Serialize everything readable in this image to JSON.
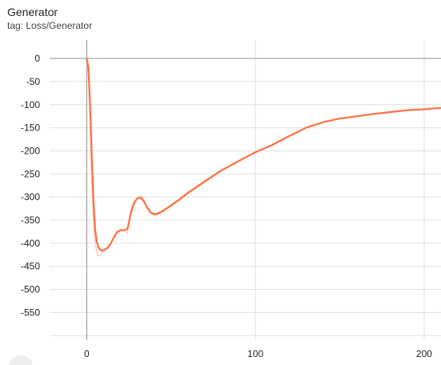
{
  "card": {
    "title": "Generator",
    "subtitle": "tag: Loss/Generator"
  },
  "chart_data": {
    "type": "line",
    "title": "Generator",
    "xlim": [
      -22,
      210
    ],
    "ylim": [
      -610,
      40
    ],
    "x_ticks": [
      0,
      100,
      200
    ],
    "y_ticks": [
      0,
      -50,
      -100,
      -150,
      -200,
      -250,
      -300,
      -350,
      -400,
      -450,
      -500,
      -550
    ],
    "grid": true,
    "legend": "none",
    "colors": {
      "smoothed": "#ff7043",
      "raw": "#ffccbc",
      "grid": "#e0e0e0",
      "zero_line": "#9e9e9e"
    },
    "series": [
      {
        "kind": "raw",
        "x": [
          0,
          1,
          2,
          3,
          4,
          5,
          6,
          7,
          8,
          9,
          10,
          12,
          14,
          16,
          18,
          20,
          22,
          24,
          25,
          26,
          28,
          30,
          32,
          33,
          34,
          36,
          38,
          40,
          42,
          45,
          50,
          55,
          60,
          70,
          80,
          90,
          100,
          110,
          120,
          130,
          140,
          150,
          160,
          170,
          180,
          190,
          200,
          210
        ],
        "y": [
          0,
          -40,
          -150,
          -270,
          -355,
          -400,
          -420,
          -428,
          -425,
          -420,
          -418,
          -413,
          -403,
          -390,
          -378,
          -370,
          -372,
          -378,
          -360,
          -340,
          -318,
          -302,
          -298,
          -300,
          -306,
          -322,
          -334,
          -340,
          -338,
          -332,
          -320,
          -307,
          -293,
          -268,
          -243,
          -223,
          -203,
          -187,
          -168,
          -150,
          -138,
          -130,
          -125,
          -120,
          -116,
          -112,
          -110,
          -107
        ]
      },
      {
        "kind": "smoothed",
        "x": [
          0,
          1,
          2,
          3,
          4,
          5,
          6,
          7,
          8,
          9,
          10,
          12,
          14,
          16,
          18,
          20,
          22,
          24,
          25,
          26,
          28,
          30,
          32,
          34,
          36,
          38,
          40,
          42,
          45,
          50,
          55,
          60,
          70,
          80,
          90,
          100,
          110,
          120,
          130,
          140,
          150,
          160,
          170,
          180,
          190,
          200,
          210
        ],
        "y": [
          0,
          -20,
          -100,
          -215,
          -310,
          -370,
          -398,
          -410,
          -414,
          -416,
          -415,
          -411,
          -402,
          -388,
          -376,
          -372,
          -372,
          -370,
          -355,
          -335,
          -313,
          -303,
          -301,
          -310,
          -324,
          -334,
          -337,
          -336,
          -330,
          -318,
          -305,
          -291,
          -266,
          -242,
          -222,
          -203,
          -187,
          -168,
          -150,
          -138,
          -130,
          -125,
          -120,
          -116,
          -112,
          -110,
          -107
        ]
      }
    ]
  }
}
